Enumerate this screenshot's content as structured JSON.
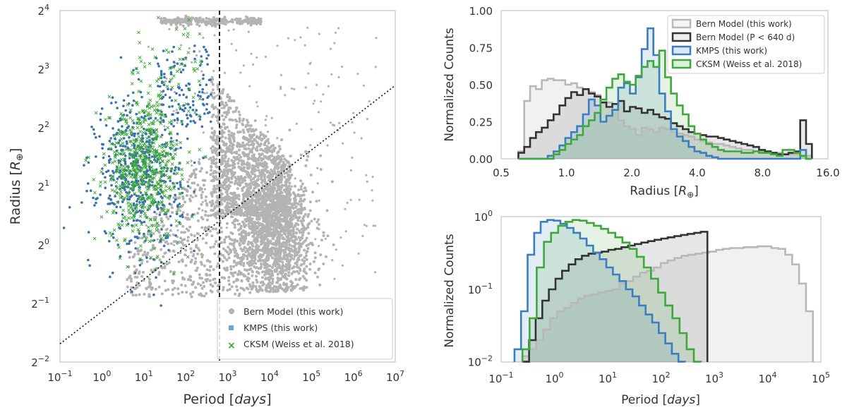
{
  "chart_data": [
    {
      "type": "scatter",
      "xlabel": "Period [days]",
      "xlabel_main": "Period [",
      "xlabel_unit": "days",
      "xlabel_end": "]",
      "ylabel": "Radius [R⊕]",
      "xscale": "log10",
      "yscale": "log2",
      "xlim_exp": [
        -1,
        7
      ],
      "ylim_exp": [
        -2,
        4
      ],
      "x_ticks": [
        -1,
        0,
        1,
        2,
        3,
        4,
        5,
        6,
        7
      ],
      "y_ticks": [
        -2,
        -1,
        0,
        1,
        2,
        3,
        4
      ],
      "tick_base_x": "10",
      "tick_base_y": "2",
      "vline_period_days": 640,
      "diagonal_line": {
        "from": [
          0.1,
          0.31
        ],
        "to": [
          10000000,
          6.6
        ]
      },
      "legend_position": "lower-right",
      "series": [
        {
          "name": "Bern Model (this work)",
          "color": "#b3b3b3",
          "marker": "circle"
        },
        {
          "name": "KMPS (this work)",
          "color": "#3a72b0",
          "marker": "square"
        },
        {
          "name": "CKSM (Weiss et al. 2018)",
          "color": "#3aaa35",
          "marker": "x"
        }
      ]
    },
    {
      "type": "histogram",
      "xlabel": "Radius [R⊕]",
      "ylabel": "Normalized Counts",
      "xscale": "log2",
      "xlim": [
        0.5,
        16.0
      ],
      "ylim": [
        0,
        1.0
      ],
      "x_tick_labels": [
        "0.5",
        "1.0",
        "2.0",
        "4.0",
        "8.0",
        "16.0"
      ],
      "y_tick_labels": [
        "0.00",
        "0.25",
        "0.50",
        "0.75",
        "1.00"
      ],
      "legend_position": "upper-right",
      "series": [
        {
          "name": "Bern Model (this work)",
          "color": "#b8b8b8",
          "values": [
            0.05,
            0.39,
            0.49,
            0.47,
            0.53,
            0.54,
            0.53,
            0.53,
            0.5,
            0.51,
            0.48,
            0.47,
            0.45,
            0.43,
            0.4,
            0.38,
            0.33,
            0.26,
            0.22,
            0.2,
            0.16,
            0.21,
            0.2,
            0.18,
            0.21,
            0.2,
            0.18,
            0.17,
            0.16,
            0.15,
            0.13,
            0.12,
            0.11,
            0.1,
            0.1,
            0.09,
            0.08,
            0.07,
            0.06,
            0.06,
            0.05,
            0.05,
            0.05,
            0.04,
            0.04,
            0.03,
            0.03,
            0.03,
            0.02,
            0.02
          ]
        },
        {
          "name": "Bern Model (P < 640 d)",
          "color": "#333333",
          "values": [
            0.04,
            0.08,
            0.14,
            0.18,
            0.21,
            0.26,
            0.3,
            0.36,
            0.41,
            0.45,
            0.43,
            0.47,
            0.44,
            0.42,
            0.38,
            0.35,
            0.37,
            0.39,
            0.32,
            0.35,
            0.34,
            0.31,
            0.33,
            0.3,
            0.28,
            0.27,
            0.24,
            0.22,
            0.2,
            0.18,
            0.17,
            0.16,
            0.15,
            0.15,
            0.14,
            0.13,
            0.12,
            0.11,
            0.1,
            0.09,
            0.08,
            0.06,
            0.05,
            0.04,
            0.03,
            0.03,
            0.04,
            0.05,
            0.26,
            0.1
          ]
        },
        {
          "name": "KMPS (this work)",
          "color": "#3a7ec0",
          "values": [
            0,
            0,
            0,
            0,
            0,
            0.02,
            0.05,
            0.09,
            0.14,
            0.18,
            0.22,
            0.3,
            0.4,
            0.36,
            0.25,
            0.29,
            0.33,
            0.48,
            0.51,
            0.44,
            0.55,
            0.74,
            0.88,
            0.7,
            0.44,
            0.32,
            0.2,
            0.15,
            0.12,
            0.08,
            0.05,
            0.04,
            0.02,
            0.01,
            0,
            0,
            0,
            0,
            0,
            0,
            0,
            0,
            0,
            0,
            0,
            0,
            0,
            0,
            0.06,
            0
          ]
        },
        {
          "name": "CKSM (Weiss et al. 2018)",
          "color": "#3ea83a",
          "values": [
            0,
            0,
            0,
            0,
            0,
            0,
            0.03,
            0.06,
            0.1,
            0.13,
            0.16,
            0.22,
            0.26,
            0.31,
            0.4,
            0.48,
            0.54,
            0.57,
            0.52,
            0.5,
            0.56,
            0.62,
            0.66,
            0.62,
            0.73,
            0.55,
            0.44,
            0.36,
            0.3,
            0.22,
            0.17,
            0.13,
            0.1,
            0.08,
            0.06,
            0.05,
            0.05,
            0.05,
            0.04,
            0.04,
            0.05,
            0.04,
            0.04,
            0.03,
            0.02,
            0.06,
            0.06,
            0.04,
            0.02,
            0
          ]
        }
      ]
    },
    {
      "type": "histogram",
      "xlabel": "Period [days]",
      "xlabel_main": "Period [",
      "xlabel_unit": "days",
      "xlabel_end": "]",
      "ylabel": "Normalized Counts",
      "xscale": "log10",
      "yscale": "log10",
      "xlim_exp": [
        -1,
        5
      ],
      "ylim_exp": [
        -2,
        0
      ],
      "x_ticks": [
        -1,
        0,
        1,
        2,
        3,
        4,
        5
      ],
      "y_ticks": [
        -2,
        -1,
        0
      ],
      "tick_base": "10",
      "series": [
        {
          "name": "Bern Model (this work)",
          "color": "#b8b8b8",
          "values": [
            0.012,
            0.015,
            0.02,
            0.028,
            0.04,
            0.05,
            0.055,
            0.065,
            0.075,
            0.082,
            0.085,
            0.09,
            0.095,
            0.1,
            0.12,
            0.13,
            0.15,
            0.17,
            0.18,
            0.2,
            0.23,
            0.25,
            0.27,
            0.29,
            0.3,
            0.31,
            0.32,
            0.33,
            0.35,
            0.36,
            0.37,
            0.37,
            0.38,
            0.38,
            0.39,
            0.39,
            0.37,
            0.36,
            0.3,
            0.22,
            0.12,
            0.05
          ]
        },
        {
          "name": "Bern Model (P < 640 d)",
          "color": "#333333",
          "values": [
            0.01,
            0.02,
            0.04,
            0.07,
            0.1,
            0.14,
            0.18,
            0.22,
            0.26,
            0.29,
            0.31,
            0.32,
            0.33,
            0.35,
            0.36,
            0.38,
            0.4,
            0.42,
            0.44,
            0.46,
            0.48,
            0.5,
            0.52,
            0.54,
            0.56,
            0.58,
            0.6,
            0.62
          ]
        },
        {
          "name": "KMPS (this work)",
          "color": "#3a7ec0",
          "values": [
            0.015,
            0.05,
            0.3,
            0.6,
            0.85,
            0.9,
            0.88,
            0.8,
            0.7,
            0.6,
            0.5,
            0.4,
            0.32,
            0.26,
            0.2,
            0.16,
            0.13,
            0.1,
            0.08,
            0.06,
            0.045,
            0.035,
            0.025,
            0.018,
            0.013,
            0.01
          ]
        },
        {
          "name": "CKSM (Weiss et al. 2018)",
          "color": "#3ea83a",
          "values": [
            0.015,
            0.04,
            0.2,
            0.45,
            0.6,
            0.75,
            0.85,
            0.9,
            0.88,
            0.82,
            0.75,
            0.68,
            0.6,
            0.52,
            0.44,
            0.36,
            0.28,
            0.2,
            0.14,
            0.09,
            0.06,
            0.04,
            0.025,
            0.015,
            0.01
          ]
        }
      ]
    }
  ]
}
